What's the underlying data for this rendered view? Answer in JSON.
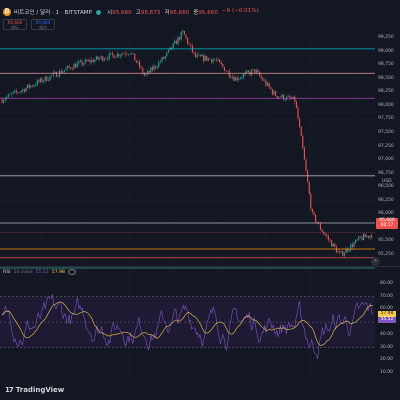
{
  "header": {
    "coin_icon": "bitcoin-icon",
    "symbol_title": "비트코인 / 달러 · 1 · BITSTAMP",
    "ohlc": [
      {
        "key": "시",
        "value": "95,660"
      },
      {
        "key": "고",
        "value": "95,673"
      },
      {
        "key": "저",
        "value": "95,660"
      },
      {
        "key": "종",
        "value": "95,660"
      }
    ],
    "change": "−9 (−0.01%)",
    "sell": {
      "price": "95,660",
      "label": "매도"
    },
    "buy": {
      "price": "95,684",
      "label": "매수"
    }
  },
  "price_axis": {
    "ticks": [
      "99,250",
      "99,000",
      "98,750",
      "98,500",
      "98,250",
      "98,000",
      "97,750",
      "97,500",
      "97,250",
      "97,000",
      "96,750",
      "96,500",
      "96,250",
      "96,000",
      "95,750",
      "95,500",
      "95,250"
    ],
    "currency": "USD",
    "current_price": "95,660",
    "countdown": "00:17"
  },
  "horizontal_levels": [
    {
      "price": 99050,
      "color": "#00bcd4"
    },
    {
      "price": 98600,
      "color": "#ef9a9a"
    },
    {
      "price": 98140,
      "color": "#ab47bc"
    },
    {
      "price": 96710,
      "color": "#b2b5be"
    },
    {
      "price": 95840,
      "color": "#b2b5be"
    },
    {
      "price": 95360,
      "color": "#ff9800"
    },
    {
      "price": 95200,
      "color": "#ef5350"
    },
    {
      "price": 95010,
      "color": "#26a69a"
    }
  ],
  "rsi": {
    "name": "RSI",
    "params": "14 close",
    "value_rsi": "55.52",
    "value_ma": "57.98",
    "tag_top": "57.98",
    "tag_bottom": "55.52",
    "ticks": [
      "80.00",
      "70.00",
      "60.00",
      "50.00",
      "40.00",
      "30.00",
      "20.00",
      "10.00"
    ],
    "upper_band": 70,
    "lower_band": 30,
    "colors": {
      "rsi": "#7e57c2",
      "ma": "#f7c948",
      "band_fill": "#1e1a33"
    }
  },
  "brand": {
    "logo": "17",
    "name": "TradingView"
  },
  "colors": {
    "background": "#131722",
    "candle_up": "#26a69a",
    "candle_down": "#ef5350",
    "grid": "#1c2030"
  }
}
